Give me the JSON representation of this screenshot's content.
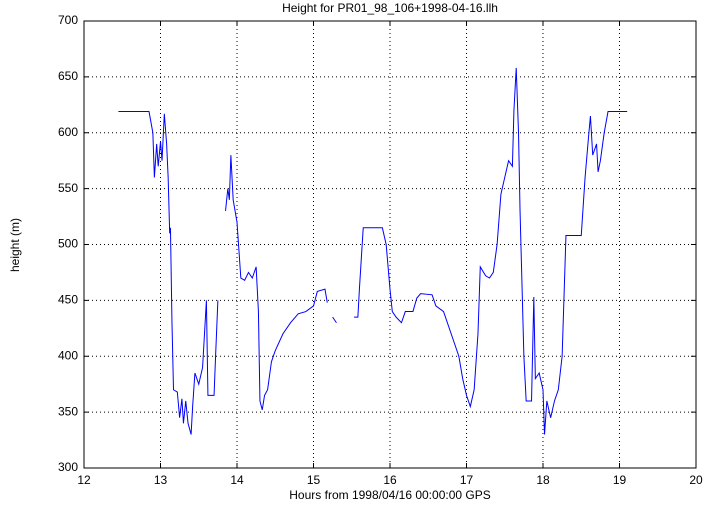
{
  "chart_data": {
    "type": "line",
    "title": "Height for PR01_98_106+1998-04-16.llh",
    "x_label": "Hours from 1998/04/16 00:00:00 GPS",
    "y_label": "height (m)",
    "color": "#0000ff",
    "grid": true,
    "xlim": [
      12,
      20
    ],
    "xticks": [
      12,
      13,
      14,
      15,
      16,
      17,
      18,
      19,
      20
    ],
    "ylim": [
      300,
      700
    ],
    "yticks": [
      300,
      350,
      400,
      450,
      500,
      550,
      600,
      650,
      700
    ],
    "x": [
      12.45,
      12.85,
      12.9,
      12.92,
      12.95,
      12.97,
      13.0,
      13.02,
      13.05,
      13.08,
      13.1,
      13.12,
      13.13,
      13.15,
      13.17,
      13.22,
      13.25,
      13.28,
      13.3,
      13.33,
      13.36,
      13.4,
      13.42,
      13.45,
      13.5,
      13.55,
      13.6,
      13.62,
      13.7,
      13.72,
      13.75,
      13.8,
      13.85,
      13.88,
      13.9,
      13.92,
      13.95,
      14.0,
      14.05,
      14.1,
      14.15,
      14.2,
      14.25,
      14.28,
      14.3,
      14.33,
      14.36,
      14.4,
      14.45,
      14.5,
      14.6,
      14.7,
      14.8,
      14.9,
      15.0,
      15.05,
      15.15,
      15.18,
      15.22,
      15.25,
      15.3,
      15.4,
      15.53,
      15.58,
      15.6,
      15.65,
      15.9,
      15.95,
      16.0,
      16.03,
      16.08,
      16.15,
      16.2,
      16.3,
      16.35,
      16.4,
      16.55,
      16.6,
      16.7,
      16.8,
      16.9,
      16.95,
      17.0,
      17.05,
      17.1,
      17.15,
      17.18,
      17.25,
      17.3,
      17.35,
      17.4,
      17.45,
      17.5,
      17.55,
      17.6,
      17.62,
      17.65,
      17.68,
      17.7,
      17.75,
      17.78,
      17.85,
      17.88,
      17.9,
      17.95,
      18.0,
      18.02,
      18.05,
      18.1,
      18.15,
      18.2,
      18.25,
      18.3,
      18.5,
      18.55,
      18.6,
      18.62,
      18.65,
      18.7,
      18.72,
      18.75,
      18.8,
      18.85,
      19.1
    ],
    "values": [
      619,
      619,
      600,
      560,
      590,
      570,
      592,
      575,
      617,
      590,
      560,
      510,
      515,
      430,
      370,
      368,
      345,
      362,
      340,
      360,
      340,
      330,
      355,
      385,
      375,
      390,
      450,
      365,
      365,
      400,
      450,
      null,
      530,
      550,
      540,
      580,
      540,
      520,
      470,
      468,
      475,
      470,
      480,
      440,
      360,
      352,
      365,
      370,
      395,
      405,
      420,
      430,
      438,
      440,
      445,
      458,
      460,
      448,
      null,
      435,
      430,
      null,
      435,
      435,
      460,
      515,
      515,
      500,
      460,
      440,
      435,
      430,
      440,
      440,
      452,
      456,
      455,
      445,
      440,
      420,
      400,
      380,
      365,
      355,
      370,
      420,
      480,
      472,
      470,
      475,
      500,
      545,
      560,
      575,
      570,
      620,
      658,
      600,
      530,
      400,
      360,
      360,
      453,
      380,
      385,
      370,
      330,
      360,
      345,
      360,
      370,
      400,
      508,
      508,
      560,
      600,
      615,
      580,
      590,
      565,
      575,
      600,
      619,
      619
    ]
  }
}
